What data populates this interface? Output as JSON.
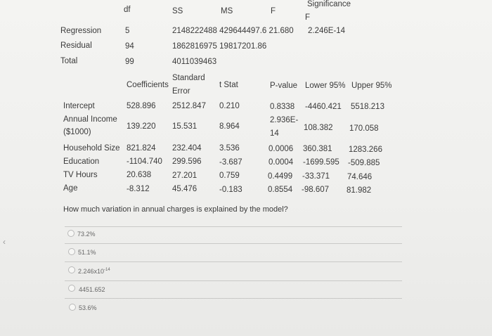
{
  "anova": {
    "headers": {
      "df": "df",
      "ss": "SS",
      "ms": "MS",
      "f": "F",
      "sigf_line1": "Significance",
      "sigf_line2": "F"
    },
    "rows": [
      {
        "label": "Regression",
        "df": "5",
        "ss_ms_f": "2148222488 429644497.6 21.680",
        "sigf": "2.246E-14"
      },
      {
        "label": "Residual",
        "df": "94",
        "ss_ms_f": "1862816975 19817201.86",
        "sigf": ""
      },
      {
        "label": "Total",
        "df": "99",
        "ss_ms_f": "4011039463",
        "sigf": ""
      }
    ]
  },
  "coef": {
    "headers": {
      "coef": "Coefficients",
      "se1": "Standard",
      "se2": "Error",
      "t": "t Stat",
      "p": "P-value",
      "lo": "Lower 95%",
      "up": "Upper 95%"
    },
    "rows": [
      {
        "label": "Intercept",
        "c": "528.896",
        "se": "2512.847",
        "t": "0.210",
        "p": "0.8338",
        "lo": "-4460.421",
        "up": "5518.213"
      },
      {
        "label": "Annual Income",
        "label2": "($1000)",
        "c": "139.220",
        "se": "15.531",
        "t": "8.964",
        "p": "2.936E-",
        "p2": "14",
        "lo": "108.382",
        "up": "170.058"
      },
      {
        "label": "Household Size",
        "c": "821.824",
        "se": "232.404",
        "t": "3.536",
        "p": "0.0006",
        "lo": "360.381",
        "up": "1283.266"
      },
      {
        "label": "Education",
        "c": "-1104.740",
        "se": "299.596",
        "t": "-3.687",
        "p": "0.0004",
        "lo": "-1699.595",
        "up": "-509.885"
      },
      {
        "label": "TV Hours",
        "c": "20.638",
        "se": "27.201",
        "t": "0.759",
        "p": "0.4499",
        "lo": "-33.371",
        "up": "74.646"
      },
      {
        "label": "Age",
        "c": "-8.312",
        "se": "45.476",
        "t": "-0.183",
        "p": "0.8554",
        "lo": "-98.607",
        "up": "81.982"
      }
    ]
  },
  "question": "How much variation in annual charges is explained by the model?",
  "options": [
    {
      "label": "73.2%"
    },
    {
      "label": "51.1%"
    },
    {
      "label_base": "2.246x10",
      "label_exp": "-14"
    },
    {
      "label": "4451.652"
    },
    {
      "label": "53.6%"
    }
  ]
}
